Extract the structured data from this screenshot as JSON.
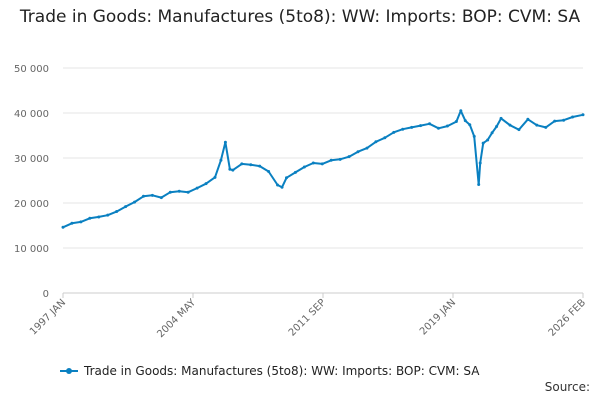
{
  "title": "Trade in Goods: Manufactures (5to8): WW: Imports: BOP: CVM: SA",
  "source_label": "Source:",
  "colors": {
    "series": "#0a80c1",
    "grid": "#e6e6e6",
    "axis": "#cccccc",
    "text": "#666666"
  },
  "chart_data": {
    "type": "line",
    "title": "Trade in Goods: Manufactures (5to8): WW: Imports: BOP: CVM: SA",
    "xlabel": "",
    "ylabel": "",
    "ylim": [
      0,
      50000
    ],
    "yticks": [
      0,
      10000,
      20000,
      30000,
      40000,
      50000
    ],
    "ytick_labels": [
      "0",
      "10 000",
      "20 000",
      "30 000",
      "40 000",
      "50 000"
    ],
    "xlim": [
      "1997-01",
      "2026-02"
    ],
    "xtick_labels": [
      "1997 JAN",
      "2004 MAY",
      "2011 SEP",
      "2019 JAN",
      "2026 FEB"
    ],
    "series": [
      {
        "name": "Trade in Goods: Manufactures (5to8): WW: Imports: BOP: CVM: SA",
        "x": [
          "1997-01",
          "1997-07",
          "1998-01",
          "1998-07",
          "1999-01",
          "1999-07",
          "2000-01",
          "2000-07",
          "2001-01",
          "2001-07",
          "2002-01",
          "2002-07",
          "2003-01",
          "2003-07",
          "2004-01",
          "2004-07",
          "2005-01",
          "2005-07",
          "2005-11",
          "2006-02",
          "2006-05",
          "2006-07",
          "2007-01",
          "2007-07",
          "2008-01",
          "2008-07",
          "2009-01",
          "2009-04",
          "2009-07",
          "2010-01",
          "2010-07",
          "2011-01",
          "2011-07",
          "2012-01",
          "2012-07",
          "2013-01",
          "2013-07",
          "2014-01",
          "2014-07",
          "2015-01",
          "2015-07",
          "2016-01",
          "2016-07",
          "2017-01",
          "2017-07",
          "2018-01",
          "2018-07",
          "2019-01",
          "2019-04",
          "2019-07",
          "2019-10",
          "2020-01",
          "2020-04",
          "2020-05",
          "2020-07",
          "2020-10",
          "2021-01",
          "2021-04",
          "2021-07",
          "2022-01",
          "2022-07",
          "2023-01",
          "2023-07",
          "2024-01",
          "2024-07",
          "2025-01",
          "2025-07",
          "2026-02"
        ],
        "values": [
          14600,
          15500,
          15800,
          16600,
          16900,
          17300,
          18100,
          19200,
          20200,
          21500,
          21700,
          21200,
          22400,
          22600,
          22400,
          23300,
          24300,
          25700,
          29500,
          33500,
          27500,
          27300,
          28700,
          28500,
          28200,
          27000,
          24000,
          23500,
          25600,
          26800,
          28000,
          28900,
          28700,
          29500,
          29700,
          30300,
          31400,
          32200,
          33600,
          34500,
          35700,
          36400,
          36800,
          37200,
          37600,
          36600,
          37100,
          38100,
          40500,
          38300,
          37400,
          34800,
          24100,
          28900,
          33300,
          34000,
          35600,
          37000,
          38800,
          37300,
          36300,
          38600,
          37300,
          36800,
          38200,
          38400,
          39100,
          39600
        ]
      }
    ]
  }
}
